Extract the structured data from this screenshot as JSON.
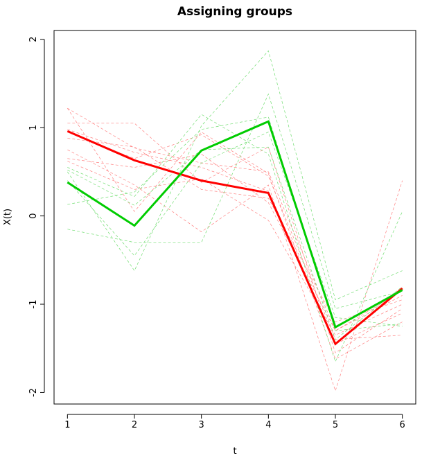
{
  "chart_data": {
    "type": "line",
    "title": "Assigning groups",
    "x_label": "t",
    "y_label": "X(t)",
    "x": [
      1,
      2,
      3,
      4,
      5,
      6
    ],
    "xlim": [
      0.8,
      6.2
    ],
    "xticks": [
      1,
      2,
      3,
      4,
      5,
      6
    ],
    "ylim": [
      -2.13,
      2.1
    ],
    "yticks": [
      -2,
      -1,
      0,
      1,
      2
    ],
    "series": [
      {
        "color": "#ff8080",
        "line_style": "dashed",
        "line_width": 0.7,
        "values": [
          1.22,
          0.77,
          0.6,
          0.5,
          -1.3,
          -0.9
        ]
      },
      {
        "color": "#ff8080",
        "line_style": "dashed",
        "line_width": 0.7,
        "values": [
          1.05,
          1.05,
          0.38,
          0.78,
          -1.55,
          -1.05
        ]
      },
      {
        "color": "#ff8080",
        "line_style": "dashed",
        "line_width": 0.7,
        "values": [
          0.95,
          0.65,
          0.92,
          0.45,
          -1.4,
          -1.35
        ]
      },
      {
        "color": "#ff8080",
        "line_style": "dashed",
        "line_width": 0.7,
        "values": [
          0.75,
          0.35,
          -0.18,
          0.35,
          -1.98,
          0.4
        ]
      },
      {
        "color": "#ff8080",
        "line_style": "dashed",
        "line_width": 0.7,
        "values": [
          0.88,
          0.78,
          0.3,
          0.2,
          -1.2,
          -0.95
        ]
      },
      {
        "color": "#ff8080",
        "line_style": "dashed",
        "line_width": 0.7,
        "values": [
          1.22,
          0.05,
          0.95,
          0.48,
          -1.62,
          -1.2
        ]
      },
      {
        "color": "#ff8080",
        "line_style": "dashed",
        "line_width": 0.7,
        "values": [
          0.65,
          0.55,
          0.7,
          0.15,
          -1.3,
          -0.85
        ]
      },
      {
        "color": "#ff8080",
        "line_style": "dashed",
        "line_width": 0.7,
        "values": [
          0.62,
          0.3,
          0.42,
          -0.05,
          -1.35,
          -1.0
        ]
      },
      {
        "color": "#ff8080",
        "line_style": "dashed",
        "line_width": 0.7,
        "values": [
          0.98,
          0.72,
          0.55,
          0.28,
          -1.45,
          -1.1
        ]
      },
      {
        "color": "#70dd70",
        "line_style": "dashed",
        "line_width": 0.7,
        "values": [
          0.5,
          -0.62,
          1.02,
          1.87,
          -0.95,
          -0.62
        ]
      },
      {
        "color": "#70dd70",
        "line_style": "dashed",
        "line_width": 0.7,
        "values": [
          -0.15,
          -0.3,
          -0.3,
          1.38,
          -1.05,
          -0.85
        ]
      },
      {
        "color": "#70dd70",
        "line_style": "dashed",
        "line_width": 0.7,
        "values": [
          0.55,
          0.22,
          1.15,
          0.7,
          -1.65,
          0.05
        ]
      },
      {
        "color": "#70dd70",
        "line_style": "dashed",
        "line_width": 0.7,
        "values": [
          0.13,
          0.27,
          0.98,
          1.12,
          -1.3,
          -1.22
        ]
      },
      {
        "color": "#70dd70",
        "line_style": "dashed",
        "line_width": 0.7,
        "values": [
          0.4,
          -0.45,
          0.6,
          0.95,
          -1.15,
          -1.25
        ]
      },
      {
        "color": "#70dd70",
        "line_style": "dashed",
        "line_width": 0.7,
        "values": [
          0.52,
          0.12,
          0.75,
          0.78,
          -1.4,
          -0.8
        ]
      },
      {
        "color": "#ff0000",
        "line_style": "solid",
        "line_width": 3,
        "values": [
          0.96,
          0.63,
          0.4,
          0.26,
          -1.45,
          -0.82
        ]
      },
      {
        "color": "#00cc00",
        "line_style": "solid",
        "line_width": 3,
        "values": [
          0.38,
          -0.11,
          0.74,
          1.07,
          -1.26,
          -0.84
        ]
      }
    ]
  }
}
